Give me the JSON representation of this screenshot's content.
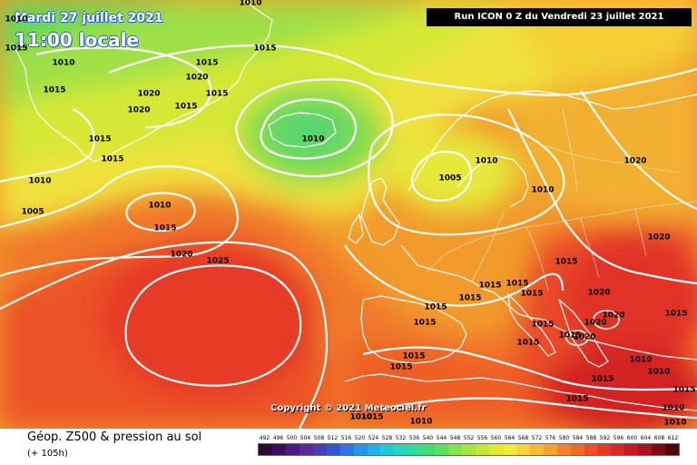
{
  "header": {
    "valid_date": "Mardi 27 juillet 2021",
    "valid_time": "11:00 locale",
    "run_info": "Run ICON 0 Z du Vendredi 23 juillet 2021"
  },
  "copyright": "Copyright © 2021 Meteociel.fr",
  "footer": {
    "field_title": "Géop. Z500 & pression au sol",
    "lead_time": "(+ 105h)"
  },
  "colors": {
    "land_outline": "#ffffff",
    "isobar": "#ffffff"
  },
  "scale": {
    "ticks": [
      "492",
      "496",
      "500",
      "504",
      "508",
      "512",
      "516",
      "520",
      "524",
      "528",
      "532",
      "536",
      "540",
      "544",
      "548",
      "552",
      "556",
      "560",
      "564",
      "568",
      "572",
      "576",
      "580",
      "584",
      "588",
      "592",
      "596",
      "600",
      "604",
      "608",
      "612"
    ],
    "colors": [
      "#2a0a36",
      "#3b0d5a",
      "#4c1a7a",
      "#5a2b98",
      "#4a3db8",
      "#3256d0",
      "#2a78e0",
      "#2596e6",
      "#22b2e8",
      "#22c8d8",
      "#26d6b8",
      "#30dc96",
      "#3ede72",
      "#5ce05a",
      "#86e24a",
      "#a6e43e",
      "#c4e636",
      "#e0ea32",
      "#f4e83a",
      "#f8d438",
      "#f8bc34",
      "#f6a030",
      "#f4842c",
      "#f06a2a",
      "#ec5028",
      "#e63a28",
      "#d82828",
      "#c41c22",
      "#a8141c",
      "#7a0c12",
      "#4a0408"
    ]
  },
  "isobar_labels": [
    {
      "text": "1010"
    },
    {
      "text": "1010"
    },
    {
      "text": "1015"
    },
    {
      "text": "1015"
    },
    {
      "text": "1015"
    },
    {
      "text": "1020"
    },
    {
      "text": "1015"
    },
    {
      "text": "1020"
    },
    {
      "text": "1020"
    },
    {
      "text": "1015"
    },
    {
      "text": "1010"
    },
    {
      "text": "1015"
    },
    {
      "text": "1015"
    },
    {
      "text": "1010"
    },
    {
      "text": "1005"
    },
    {
      "text": "1010"
    },
    {
      "text": "1015"
    },
    {
      "text": "1020"
    },
    {
      "text": "1025"
    },
    {
      "text": "1005"
    },
    {
      "text": "1010"
    },
    {
      "text": "1010"
    },
    {
      "text": "1020"
    },
    {
      "text": "1020"
    },
    {
      "text": "1015"
    },
    {
      "text": "1015"
    },
    {
      "text": "1015"
    },
    {
      "text": "1015"
    },
    {
      "text": "1015"
    },
    {
      "text": "1015"
    },
    {
      "text": "1015"
    },
    {
      "text": "1020"
    },
    {
      "text": "1020"
    },
    {
      "text": "1020"
    },
    {
      "text": "1015"
    },
    {
      "text": "1020"
    },
    {
      "text": "1015"
    },
    {
      "text": "1015"
    },
    {
      "text": "1015"
    },
    {
      "text": "1015"
    },
    {
      "text": "1015"
    },
    {
      "text": "1010"
    },
    {
      "text": "1015"
    },
    {
      "text": "1015"
    },
    {
      "text": "1010"
    },
    {
      "text": "1010"
    },
    {
      "text": "1015"
    },
    {
      "text": "1010"
    },
    {
      "text": "1010"
    },
    {
      "text": "1015"
    },
    {
      "text": "1010"
    },
    {
      "text": "1010"
    },
    {
      "text": "1015"
    }
  ]
}
